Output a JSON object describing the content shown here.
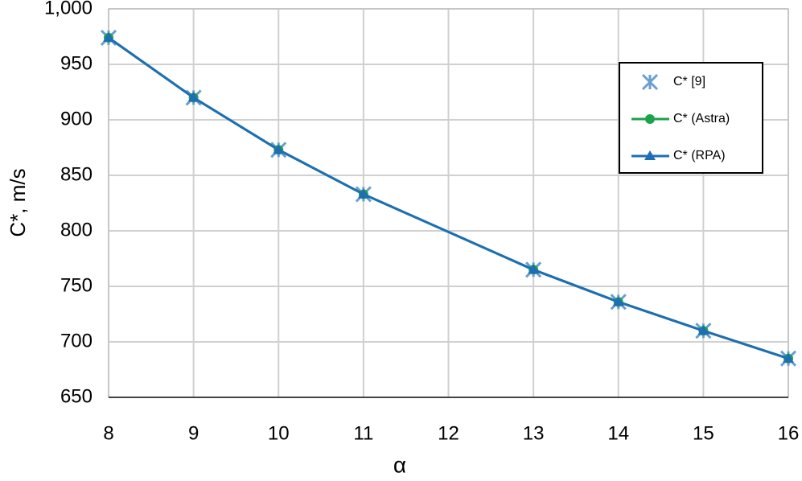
{
  "chart_data": {
    "type": "line",
    "x_label": "α",
    "y_label": "C*, m/s",
    "x": [
      8,
      9,
      10,
      11,
      13,
      14,
      15,
      16
    ],
    "series": [
      {
        "name": "C* [9]",
        "color": "#6a9fd0",
        "marker": "asterisk",
        "line": false,
        "values": [
          974,
          920,
          873,
          833,
          765,
          736,
          710,
          685
        ]
      },
      {
        "name": "C* (Astra)",
        "color": "#1aa34a",
        "marker": "circle",
        "line": true,
        "values": [
          974,
          920,
          873,
          833,
          765,
          736,
          710,
          685
        ]
      },
      {
        "name": "C* (RPA)",
        "color": "#1f6eb5",
        "marker": "triangle",
        "line": true,
        "values": [
          974,
          920,
          873,
          833,
          765,
          736,
          710,
          685
        ]
      }
    ],
    "xlim": [
      8,
      16
    ],
    "xticks": [
      8,
      9,
      10,
      11,
      12,
      13,
      14,
      15,
      16
    ],
    "ylim": [
      650,
      1000
    ],
    "yticks": [
      650,
      700,
      750,
      800,
      850,
      900,
      950,
      {
        "value": 1000,
        "label": "1,000"
      }
    ],
    "grid": true,
    "legend": "upper right"
  }
}
